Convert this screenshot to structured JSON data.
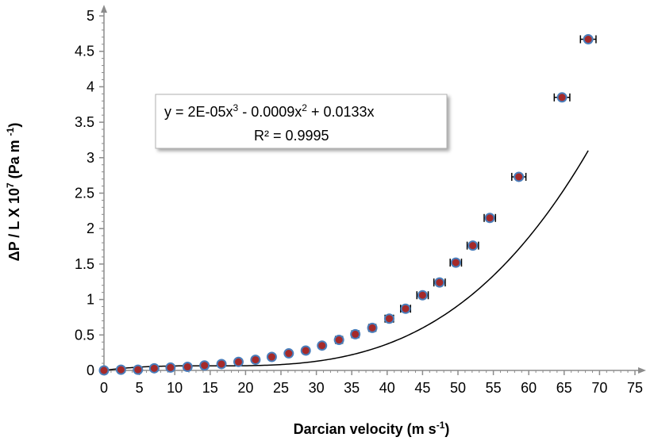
{
  "chart_data": {
    "type": "scatter",
    "xlabel": {
      "main": "Darcian velocity (m s",
      "sup": "-1",
      "end": ")"
    },
    "ylabel": {
      "main": "ΔP / L X 10",
      "sup1": "7",
      "mid": " (Pa m ",
      "sup2": "-1",
      "end": ")"
    },
    "xlim": [
      0,
      75
    ],
    "ylim": [
      0,
      5
    ],
    "xticks": [
      "0",
      "5",
      "10",
      "15",
      "20",
      "25",
      "30",
      "35",
      "40",
      "45",
      "50",
      "55",
      "60",
      "65",
      "70",
      "75"
    ],
    "yticks": [
      "0",
      "0.5",
      "1",
      "1.5",
      "2",
      "2.5",
      "3",
      "3.5",
      "4",
      "4.5",
      "5"
    ],
    "grid": false,
    "marker_color": "#a52a2a",
    "marker_edge_color": "#4a7ebb",
    "points": [
      {
        "x": 0,
        "y": 0.0,
        "xerr": 0
      },
      {
        "x": 2.4,
        "y": 0.01,
        "xerr": 0
      },
      {
        "x": 4.8,
        "y": 0.01,
        "xerr": 0
      },
      {
        "x": 7.1,
        "y": 0.03,
        "xerr": 0
      },
      {
        "x": 9.4,
        "y": 0.04,
        "xerr": 0
      },
      {
        "x": 11.8,
        "y": 0.05,
        "xerr": 0
      },
      {
        "x": 14.2,
        "y": 0.07,
        "xerr": 0
      },
      {
        "x": 16.6,
        "y": 0.09,
        "xerr": 0
      },
      {
        "x": 19.0,
        "y": 0.12,
        "xerr": 0
      },
      {
        "x": 21.4,
        "y": 0.15,
        "xerr": 0
      },
      {
        "x": 23.7,
        "y": 0.19,
        "xerr": 0.3
      },
      {
        "x": 26.1,
        "y": 0.24,
        "xerr": 0.3
      },
      {
        "x": 28.5,
        "y": 0.28,
        "xerr": 0.3
      },
      {
        "x": 30.8,
        "y": 0.35,
        "xerr": 0.3
      },
      {
        "x": 33.2,
        "y": 0.43,
        "xerr": 0.5
      },
      {
        "x": 35.5,
        "y": 0.51,
        "xerr": 0.5
      },
      {
        "x": 37.9,
        "y": 0.6,
        "xerr": 0.5
      },
      {
        "x": 40.3,
        "y": 0.73,
        "xerr": 0.6
      },
      {
        "x": 42.6,
        "y": 0.87,
        "xerr": 0.7
      },
      {
        "x": 45.0,
        "y": 1.06,
        "xerr": 0.8
      },
      {
        "x": 47.4,
        "y": 1.24,
        "xerr": 0.8
      },
      {
        "x": 49.7,
        "y": 1.52,
        "xerr": 0.8
      },
      {
        "x": 52.1,
        "y": 1.76,
        "xerr": 0.8
      },
      {
        "x": 54.5,
        "y": 2.15,
        "xerr": 0.8
      },
      {
        "x": 58.6,
        "y": 2.73,
        "xerr": 1.0
      },
      {
        "x": 64.7,
        "y": 3.85,
        "xerr": 1.1
      },
      {
        "x": 68.4,
        "y": 4.67,
        "xerr": 1.1
      }
    ],
    "trendline": {
      "type": "polynomial",
      "coefficients": {
        "a3": 2e-05,
        "a2": -0.0009,
        "a1": 0.0133,
        "a0": 0
      },
      "equation": {
        "p1": "y = 2E-05x",
        "s1": "3",
        "p2": " - 0.0009x",
        "s2": "2",
        "p3": " + 0.0133x"
      },
      "r_squared_label": "R² = 0.9995"
    }
  }
}
